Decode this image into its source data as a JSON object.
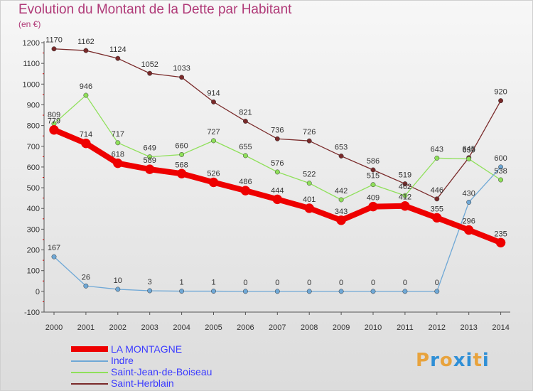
{
  "title": "Evolution du Montant de la Dette par Habitant",
  "unit_label": "(en €)",
  "logo": {
    "text": "Proxiti",
    "colors": [
      "#e8a33d",
      "#2f8fd6",
      "#e8a33d",
      "#2f8fd6",
      "#2f8fd6",
      "#e8a33d",
      "#2f8fd6"
    ]
  },
  "chart_data": {
    "type": "line",
    "x": [
      "2000",
      "2001",
      "2002",
      "2003",
      "2004",
      "2005",
      "2006",
      "2007",
      "2008",
      "2009",
      "2010",
      "2011",
      "2012",
      "2013",
      "2014"
    ],
    "ylim": [
      -100,
      1200
    ],
    "yticks": [
      "-100",
      "0",
      "100",
      "200",
      "300",
      "400",
      "500",
      "600",
      "700",
      "800",
      "900",
      "1000",
      "1100",
      "1200"
    ],
    "grid": false,
    "legend_position": "bottom-left",
    "series": [
      {
        "name": "LA MONTAGNE",
        "color": "#ee0000",
        "width": 8,
        "values": [
          779,
          714,
          618,
          589,
          568,
          526,
          486,
          444,
          401,
          343,
          409,
          412,
          355,
          296,
          235
        ],
        "labels": [
          "779",
          "714",
          "618",
          "589",
          "568",
          "526",
          "486",
          "444",
          "401",
          "343",
          "409",
          "412",
          "355",
          "296",
          "235"
        ]
      },
      {
        "name": "Indre",
        "color": "#6fa8d6",
        "width": 1.3,
        "values": [
          167,
          26,
          10,
          3,
          1,
          1,
          0,
          0,
          0,
          0,
          0,
          0,
          0,
          430,
          600
        ],
        "labels": [
          "167",
          "26",
          "10",
          "3",
          "1",
          "1",
          "0",
          "0",
          "0",
          "0",
          "0",
          "0",
          "0",
          "430",
          "600"
        ]
      },
      {
        "name": "Saint-Jean-de-Boiseau",
        "color": "#8fe05a",
        "width": 1.3,
        "values": [
          809,
          946,
          717,
          649,
          660,
          727,
          655,
          576,
          522,
          442,
          515,
          462,
          643,
          639,
          538
        ],
        "labels": [
          "809",
          "946",
          "717",
          "649",
          "660",
          "727",
          "655",
          "576",
          "522",
          "442",
          "515",
          "462",
          "643",
          "639",
          "538"
        ]
      },
      {
        "name": "Saint-Herblain",
        "color": "#7a2a2a",
        "width": 1.3,
        "values": [
          1170,
          1162,
          1124,
          1052,
          1033,
          914,
          821,
          736,
          726,
          653,
          586,
          519,
          446,
          645,
          920
        ],
        "labels": [
          "1170",
          "1162",
          "1124",
          "1052",
          "1033",
          "914",
          "821",
          "736",
          "726",
          "653",
          "586",
          "519",
          "446",
          "645",
          "920"
        ]
      }
    ]
  }
}
